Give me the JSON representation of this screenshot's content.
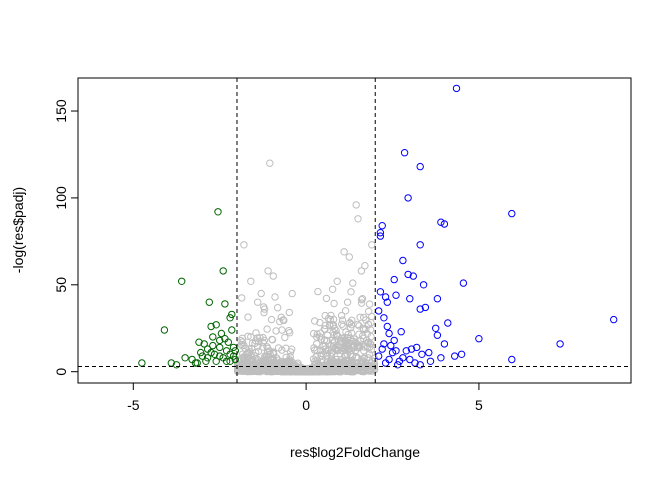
{
  "chart_data": {
    "type": "scatter",
    "title": "",
    "xlabel": "res$log2FoldChange",
    "ylabel": "-log(res$padj)",
    "xlim": [
      -6.6,
      9.4
    ],
    "ylim": [
      -6.5,
      169
    ],
    "x_ticks": [
      -5,
      0,
      5
    ],
    "x_tick_labels": [
      "-5",
      "0",
      "5"
    ],
    "y_ticks": [
      0,
      50,
      100,
      150
    ],
    "y_tick_labels": [
      "0",
      "50",
      "100",
      "150"
    ],
    "grid": false,
    "legend": "none",
    "thresholds": {
      "vertical": [
        -2,
        2
      ],
      "horizontal": [
        3
      ]
    },
    "colors": {
      "down": "#006400",
      "up": "#0000ff",
      "ns": "#bebebe",
      "lines": "#000000"
    },
    "series": [
      {
        "key": "down",
        "color": "#006400",
        "points": [
          [
            -4.75,
            5
          ],
          [
            -4.1,
            24
          ],
          [
            -3.9,
            5
          ],
          [
            -3.75,
            4
          ],
          [
            -3.6,
            52
          ],
          [
            -3.5,
            8
          ],
          [
            -3.3,
            7
          ],
          [
            -3.2,
            5
          ],
          [
            -3.1,
            17
          ],
          [
            -3.05,
            11
          ],
          [
            -3.0,
            9
          ],
          [
            -2.95,
            16
          ],
          [
            -2.9,
            6
          ],
          [
            -2.85,
            8
          ],
          [
            -2.8,
            40
          ],
          [
            -2.75,
            26
          ],
          [
            -2.7,
            15
          ],
          [
            -2.7,
            20
          ],
          [
            -2.65,
            10
          ],
          [
            -2.6,
            27
          ],
          [
            -2.55,
            92
          ],
          [
            -2.5,
            18
          ],
          [
            -2.5,
            14
          ],
          [
            -2.45,
            22
          ],
          [
            -2.4,
            58
          ],
          [
            -2.4,
            8
          ],
          [
            -2.35,
            39
          ],
          [
            -2.3,
            12
          ],
          [
            -2.3,
            6
          ],
          [
            -2.25,
            17
          ],
          [
            -2.2,
            31
          ],
          [
            -2.2,
            10
          ],
          [
            -2.15,
            33
          ],
          [
            -2.15,
            24
          ],
          [
            -2.1,
            9
          ],
          [
            -2.1,
            14
          ],
          [
            -2.05,
            7
          ],
          [
            -2.05,
            12
          ],
          [
            -2.6,
            6
          ],
          [
            -2.85,
            13
          ],
          [
            -3.15,
            5
          ],
          [
            -2.35,
            19
          ],
          [
            -2.75,
            11
          ],
          [
            -2.2,
            6
          ],
          [
            -2.5,
            9
          ]
        ]
      },
      {
        "key": "up",
        "color": "#0000ff",
        "points": [
          [
            4.35,
            163
          ],
          [
            2.85,
            126
          ],
          [
            3.3,
            118
          ],
          [
            2.95,
            100
          ],
          [
            5.95,
            91
          ],
          [
            3.9,
            86
          ],
          [
            4.0,
            85
          ],
          [
            2.2,
            84
          ],
          [
            2.15,
            80
          ],
          [
            2.15,
            78
          ],
          [
            3.3,
            73
          ],
          [
            2.8,
            64
          ],
          [
            2.95,
            56
          ],
          [
            3.1,
            55
          ],
          [
            2.55,
            53
          ],
          [
            4.55,
            51
          ],
          [
            3.4,
            50
          ],
          [
            2.15,
            46
          ],
          [
            2.3,
            43
          ],
          [
            2.6,
            44
          ],
          [
            3.0,
            42
          ],
          [
            2.35,
            40
          ],
          [
            3.8,
            42
          ],
          [
            3.3,
            36
          ],
          [
            3.45,
            37
          ],
          [
            2.1,
            35
          ],
          [
            4.1,
            28
          ],
          [
            8.9,
            30
          ],
          [
            3.75,
            25
          ],
          [
            2.75,
            23
          ],
          [
            5.0,
            19
          ],
          [
            3.8,
            21
          ],
          [
            7.35,
            16
          ],
          [
            4.0,
            16
          ],
          [
            3.2,
            14
          ],
          [
            2.4,
            22
          ],
          [
            2.55,
            18
          ],
          [
            2.25,
            31
          ],
          [
            2.6,
            12
          ],
          [
            2.9,
            12
          ],
          [
            3.05,
            13
          ],
          [
            3.35,
            10
          ],
          [
            3.55,
            11
          ],
          [
            3.9,
            8
          ],
          [
            4.3,
            9
          ],
          [
            4.5,
            10
          ],
          [
            5.95,
            7
          ],
          [
            2.1,
            9
          ],
          [
            2.2,
            13
          ],
          [
            2.3,
            5
          ],
          [
            2.4,
            7
          ],
          [
            2.5,
            11
          ],
          [
            2.7,
            6
          ],
          [
            2.8,
            8
          ],
          [
            3.0,
            7
          ],
          [
            3.15,
            5
          ],
          [
            3.6,
            6
          ],
          [
            3.3,
            4
          ],
          [
            2.25,
            16
          ],
          [
            2.45,
            15
          ],
          [
            2.65,
            4
          ],
          [
            2.35,
            26
          ]
        ]
      }
    ]
  }
}
